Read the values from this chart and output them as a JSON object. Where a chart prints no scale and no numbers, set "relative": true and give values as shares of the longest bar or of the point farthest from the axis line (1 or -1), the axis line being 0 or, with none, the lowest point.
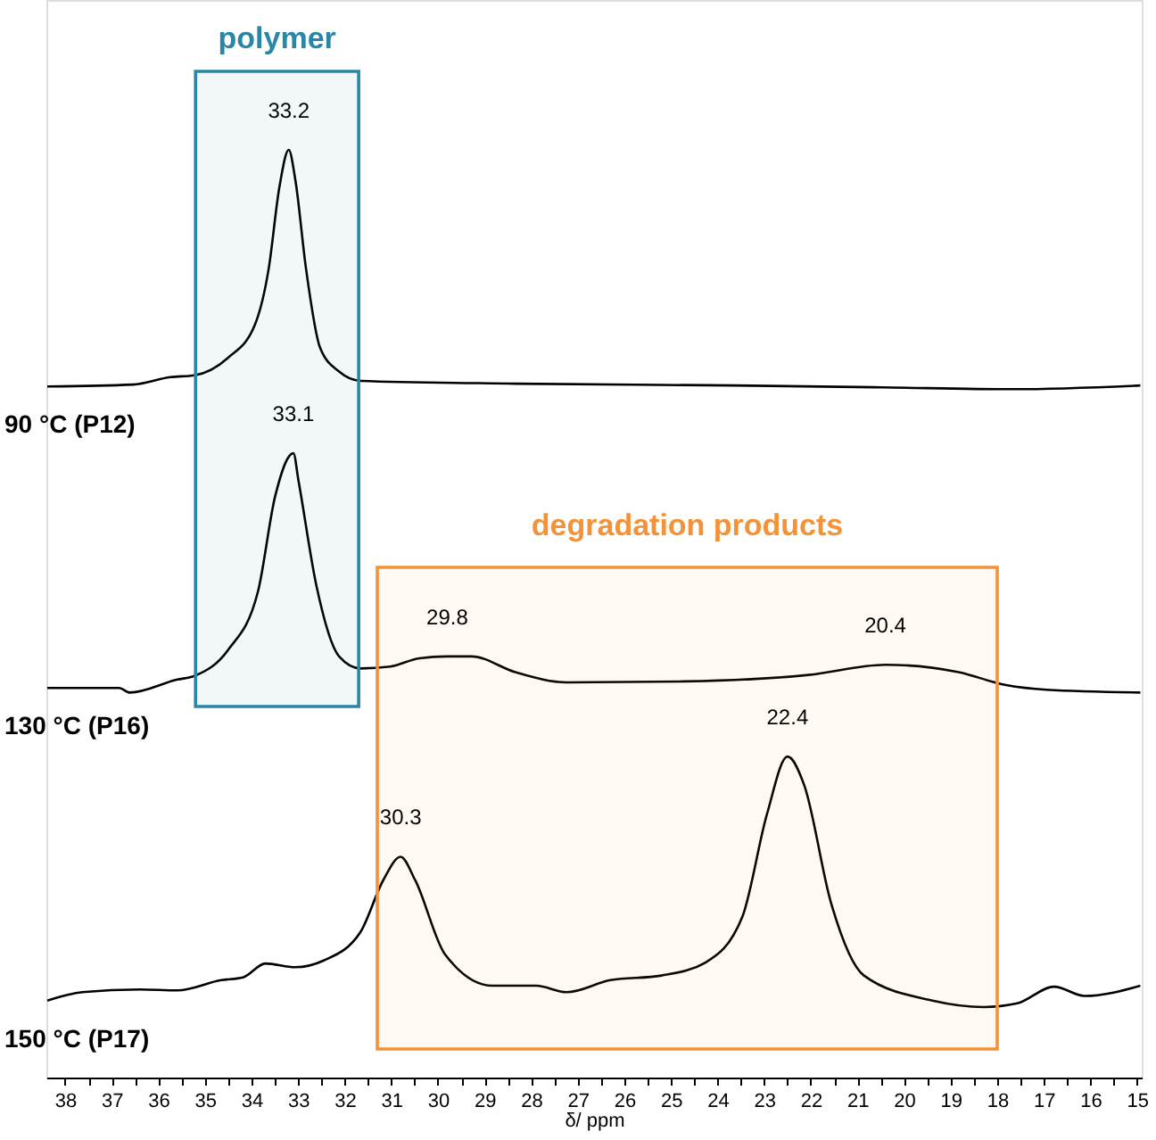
{
  "chart_data": {
    "type": "line",
    "relative": true,
    "xlabel": "δ/ ppm",
    "xlim": [
      38.4,
      14.9
    ],
    "xticks": [
      38,
      {
        "value": 37.5,
        "label": null
      },
      37,
      {
        "value": 36.5,
        "label": null
      },
      36,
      {
        "value": 35.5,
        "label": null
      },
      35,
      {
        "value": 34.5,
        "label": null
      },
      34,
      {
        "value": 33.5,
        "label": null
      },
      33,
      {
        "value": 32.5,
        "label": null
      },
      32,
      {
        "value": 31.5,
        "label": null
      },
      31,
      {
        "value": 30.5,
        "label": null
      },
      30,
      {
        "value": 29.5,
        "label": null
      },
      29,
      {
        "value": 28.5,
        "label": null
      },
      28,
      {
        "value": 27.5,
        "label": null
      },
      27,
      {
        "value": 26.5,
        "label": null
      },
      26,
      {
        "value": 25.5,
        "label": null
      },
      25,
      {
        "value": 24.5,
        "label": null
      },
      24,
      {
        "value": 23.5,
        "label": null
      },
      23,
      {
        "value": 22.5,
        "label": null
      },
      22,
      {
        "value": 21.5,
        "label": null
      },
      21,
      {
        "value": 20.5,
        "label": null
      },
      20,
      {
        "value": 19.5,
        "label": null
      },
      19,
      {
        "value": 18.5,
        "label": null
      },
      18,
      {
        "value": 17.5,
        "label": null
      },
      17,
      {
        "value": 16.5,
        "label": null
      },
      16,
      {
        "value": 15.5,
        "label": null
      },
      15
    ],
    "tick_labels": "x",
    "grid": false,
    "legend": false,
    "line_style": "solid",
    "marker": "none",
    "series": [
      {
        "name": "90 °C (P12)",
        "color": "#000000",
        "x": [
          38.38,
          36.54,
          35.74,
          35.22,
          34.5,
          33.93,
          33.63,
          33.4,
          33.2,
          33.06,
          32.83,
          32.53,
          32.12,
          31.66,
          28.34,
          23.62,
          20.48,
          17.65,
          14.93
        ],
        "values": [
          0.745,
          0.747,
          0.755,
          0.757,
          0.776,
          0.811,
          0.872,
          0.96,
          1.0,
          0.968,
          0.872,
          0.787,
          0.761,
          0.751,
          0.748,
          0.746,
          0.744,
          0.742,
          0.746
        ]
      },
      {
        "name": "130 °C (P16)",
        "color": "#000000",
        "x": [
          38.38,
          36.84,
          36.61,
          35.59,
          35.22,
          34.5,
          33.86,
          33.49,
          33.1,
          32.99,
          32.61,
          32.12,
          31.66,
          31.02,
          30.4,
          29.8,
          29.28,
          28.34,
          27.24,
          24.73,
          22.05,
          20.4,
          18.83,
          17.81,
          16.94,
          14.93
        ],
        "values": [
          0.42,
          0.42,
          0.415,
          0.429,
          0.433,
          0.461,
          0.524,
          0.627,
          0.673,
          0.643,
          0.531,
          0.454,
          0.441,
          0.443,
          0.452,
          0.454,
          0.454,
          0.437,
          0.426,
          0.427,
          0.434,
          0.445,
          0.437,
          0.423,
          0.418,
          0.415
        ]
      },
      {
        "name": "150 °C (P17)",
        "color": "#000000",
        "x": [
          38.38,
          37.63,
          36.39,
          35.59,
          34.65,
          34.18,
          33.7,
          33.06,
          32.46,
          31.66,
          31.17,
          30.8,
          30.49,
          29.85,
          28.83,
          27.89,
          27.24,
          26.3,
          25.2,
          24.26,
          23.47,
          22.94,
          22.5,
          22.14,
          21.57,
          20.86,
          19.39,
          18.29,
          17.57,
          16.78,
          16.13,
          14.93
        ],
        "values": [
          0.083,
          0.092,
          0.095,
          0.094,
          0.105,
          0.108,
          0.123,
          0.119,
          0.126,
          0.157,
          0.213,
          0.238,
          0.213,
          0.133,
          0.099,
          0.099,
          0.092,
          0.105,
          0.11,
          0.124,
          0.173,
          0.284,
          0.346,
          0.315,
          0.189,
          0.11,
          0.083,
          0.076,
          0.08,
          0.098,
          0.088,
          0.099
        ]
      }
    ],
    "bands": [
      {
        "axis": "x",
        "from": 35.2,
        "to": 31.7,
        "label": "polymer",
        "color": "#2a86a6"
      },
      {
        "axis": "x",
        "from": 31.3,
        "to": 18.0,
        "label": "degradation products",
        "color": "#f4923a"
      }
    ],
    "annotations": [
      {
        "text": "33.2",
        "x": 33.2,
        "y": 1.0
      },
      {
        "text": "33.1",
        "x": 33.1,
        "y": 0.673
      },
      {
        "text": "29.8",
        "x": 29.8,
        "y": 0.454
      },
      {
        "text": "20.4",
        "x": 20.4,
        "y": 0.445
      },
      {
        "text": "30.3",
        "x": 30.8,
        "y": 0.238
      },
      {
        "text": "22.4",
        "x": 22.5,
        "y": 0.346
      }
    ]
  }
}
